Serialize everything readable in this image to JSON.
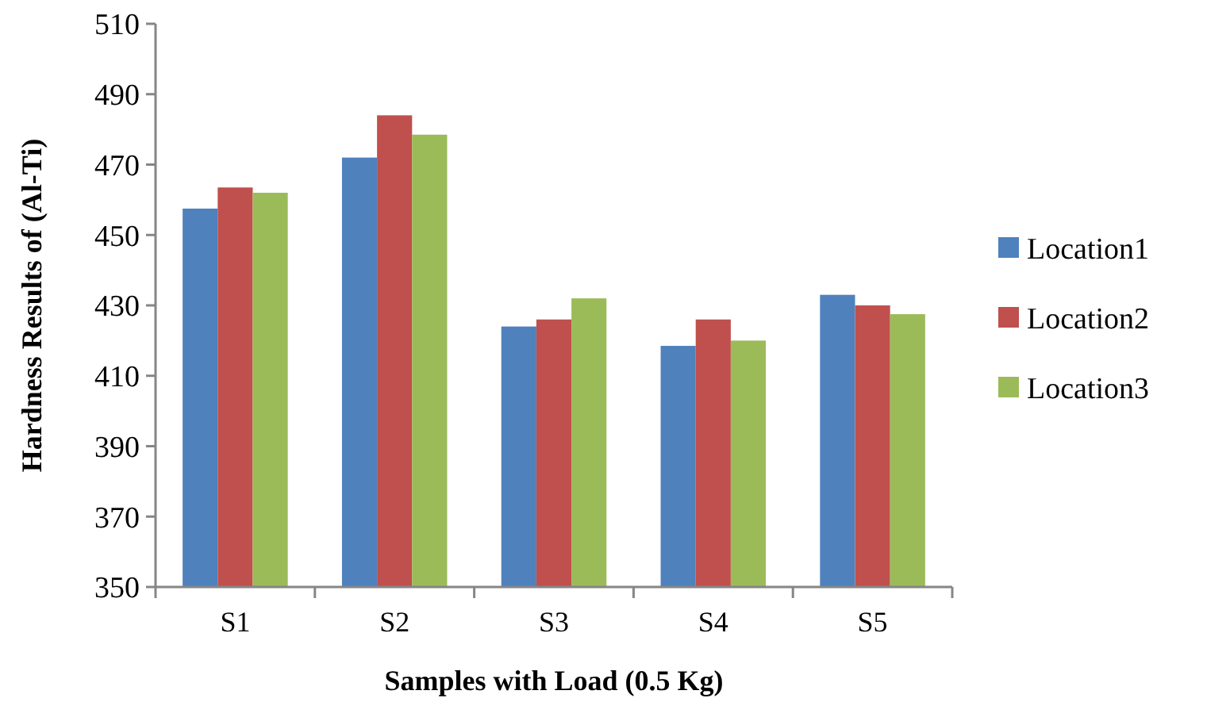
{
  "chart_data": {
    "type": "bar",
    "xlabel": "Samples with Load (0.5 Kg)",
    "ylabel": "Hardness Results of (Al-Ti)",
    "categories": [
      "S1",
      "S2",
      "S3",
      "S4",
      "S5"
    ],
    "series": [
      {
        "name": "Location1",
        "color": "#4f81bd",
        "values": [
          457.5,
          472,
          424,
          418.5,
          433
        ]
      },
      {
        "name": "Location2",
        "color": "#c0504d",
        "values": [
          463.5,
          484,
          426,
          426,
          430
        ]
      },
      {
        "name": "Location3",
        "color": "#9bbb59",
        "values": [
          462,
          478.5,
          432,
          420,
          427.5
        ]
      }
    ],
    "ylim": [
      350,
      510
    ],
    "yticks": [
      350,
      370,
      390,
      410,
      430,
      450,
      470,
      490,
      510
    ],
    "grid": false,
    "legend": "right"
  }
}
